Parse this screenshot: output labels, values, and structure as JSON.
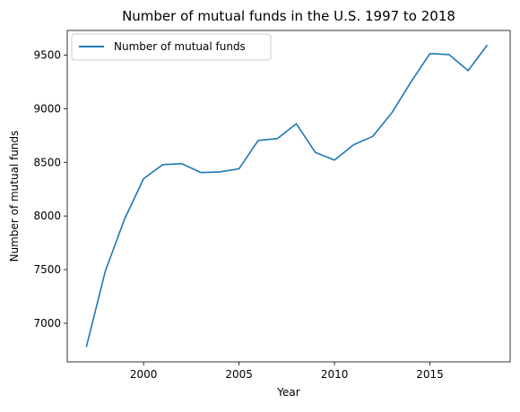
{
  "chart_data": {
    "type": "line",
    "title": "Number of mutual funds in the U.S. 1997 to 2018",
    "xlabel": "Year",
    "ylabel": "Number of mutual funds",
    "xlim": [
      1996,
      2019.2
    ],
    "ylim": [
      6640,
      9730
    ],
    "xticks": [
      2000,
      2005,
      2010,
      2015
    ],
    "yticks": [
      7000,
      7500,
      8000,
      8500,
      9000,
      9500
    ],
    "legend_position": "top-left",
    "grid": false,
    "series": [
      {
        "name": "Number of mutual funds",
        "color": "#1f77b4",
        "x": [
          1997,
          1998,
          1999,
          2000,
          2001,
          2002,
          2003,
          2004,
          2005,
          2006,
          2007,
          2008,
          2009,
          2010,
          2011,
          2012,
          2013,
          2014,
          2015,
          2016,
          2017,
          2018
        ],
        "y": [
          6778,
          7489,
          7970,
          8348,
          8479,
          8488,
          8405,
          8411,
          8440,
          8704,
          8721,
          8860,
          8592,
          8521,
          8664,
          8742,
          8961,
          9248,
          9514,
          9505,
          9355,
          9594
        ]
      }
    ]
  }
}
